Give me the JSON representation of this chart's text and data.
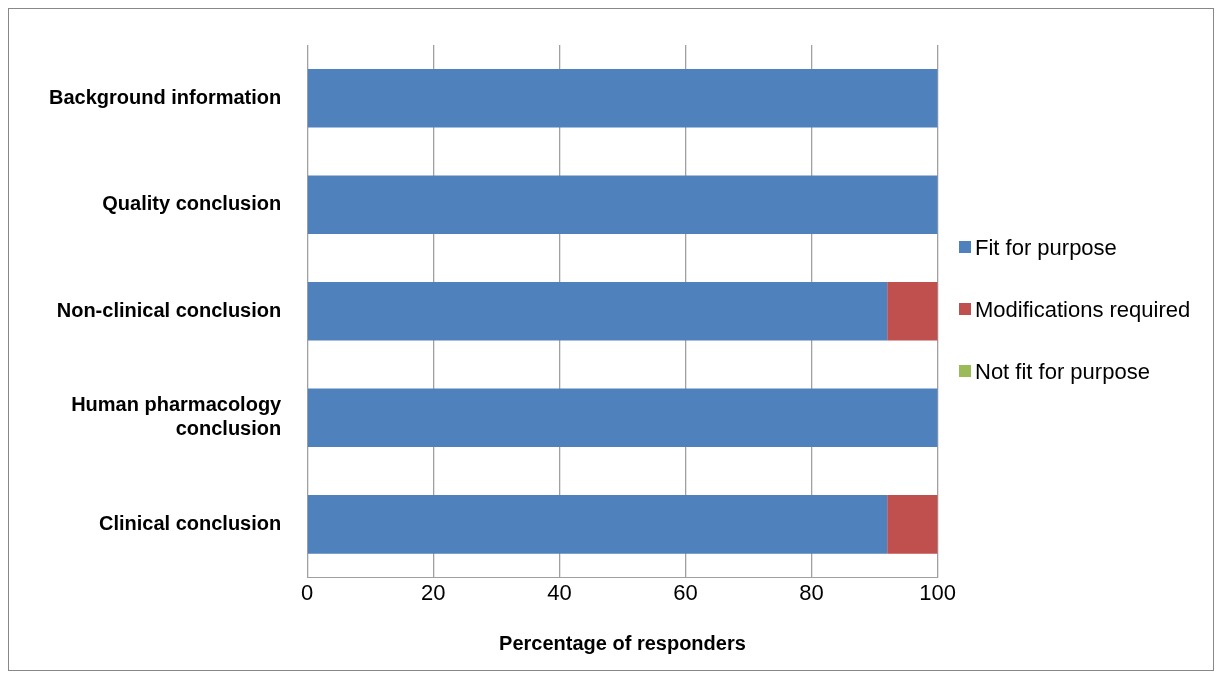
{
  "chart_data": {
    "type": "bar",
    "orientation": "horizontal",
    "stacked": true,
    "xlabel": "Percentage of responders",
    "categories": [
      "Background information",
      "Quality conclusion",
      "Non-clinical conclusion",
      "Human pharmacology conclusion",
      "Clinical conclusion"
    ],
    "series": [
      {
        "name": "Fit for purpose",
        "color": "#4f81bd",
        "values": [
          100,
          100,
          92,
          100,
          92
        ]
      },
      {
        "name": "Modifications required",
        "color": "#c0504d",
        "values": [
          0,
          0,
          8,
          0,
          8
        ]
      },
      {
        "name": "Not fit for purpose",
        "color": "#9bbb59",
        "values": [
          0,
          0,
          0,
          0,
          0
        ]
      }
    ],
    "xlim": [
      0,
      100
    ],
    "xticks": [
      0,
      20,
      40,
      60,
      80,
      100
    ],
    "grid": "x",
    "legend": "right"
  }
}
